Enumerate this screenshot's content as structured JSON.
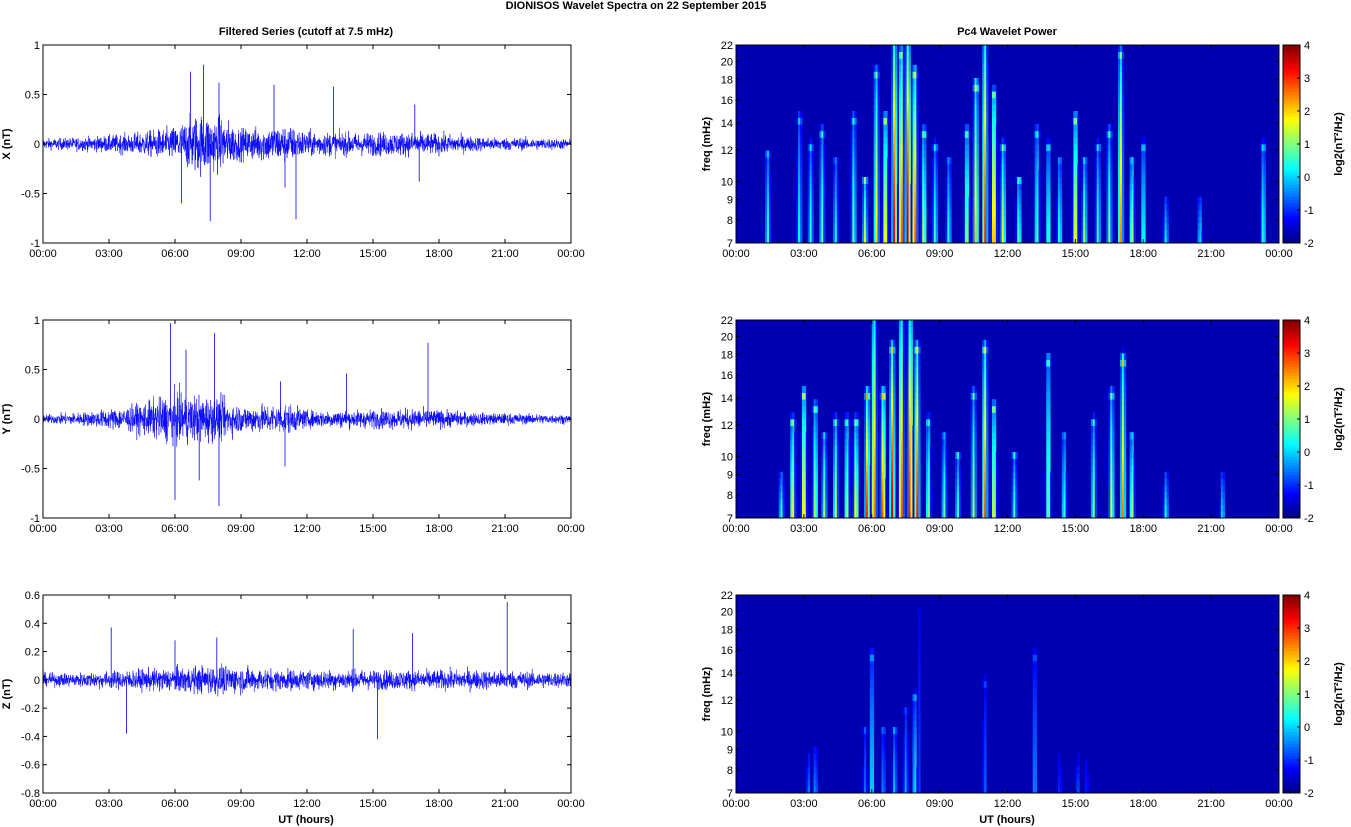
{
  "figure": {
    "suptitle": "DIONISOS Wavelet Spectra on 22 September 2015",
    "left_title": "Filtered Series (cutoff at 7.5 mHz)",
    "right_title": "Pc4 Wavelet Power",
    "xlabel": "UT (hours)"
  },
  "chart_data": [
    {
      "type": "line",
      "component": "X",
      "ylabel": "X (nT)",
      "xlim": [
        0,
        24
      ],
      "ylim": [
        -1,
        1
      ],
      "xticks": [
        "00:00",
        "03:00",
        "06:00",
        "09:00",
        "12:00",
        "15:00",
        "18:00",
        "21:00",
        "00:00"
      ],
      "yticks": [
        "-1",
        "-0.5",
        "0",
        "0.5",
        "1"
      ],
      "color": "#0000ff",
      "noise_envelope_nT": [
        [
          0,
          0.06
        ],
        [
          2,
          0.08
        ],
        [
          4,
          0.12
        ],
        [
          6,
          0.2
        ],
        [
          7,
          0.35
        ],
        [
          8,
          0.32
        ],
        [
          9,
          0.18
        ],
        [
          11,
          0.22
        ],
        [
          12,
          0.15
        ],
        [
          14,
          0.13
        ],
        [
          16,
          0.14
        ],
        [
          18,
          0.12
        ],
        [
          20,
          0.08
        ],
        [
          24,
          0.06
        ]
      ],
      "peaks": [
        [
          6.7,
          0.73
        ],
        [
          7.3,
          0.8
        ],
        [
          7.6,
          -0.78
        ],
        [
          8.0,
          0.62
        ],
        [
          10.5,
          0.6
        ],
        [
          11.5,
          -0.76
        ],
        [
          13.2,
          0.58
        ],
        [
          16.9,
          0.4
        ],
        [
          17.1,
          -0.38
        ],
        [
          11.0,
          -0.44
        ],
        [
          6.3,
          -0.6
        ]
      ]
    },
    {
      "type": "line",
      "component": "Y",
      "ylabel": "Y (nT)",
      "xlim": [
        0,
        24
      ],
      "ylim": [
        -1,
        1
      ],
      "xticks": [
        "00:00",
        "03:00",
        "06:00",
        "09:00",
        "12:00",
        "15:00",
        "18:00",
        "21:00",
        "00:00"
      ],
      "yticks": [
        "-1",
        "-0.5",
        "0",
        "0.5",
        "1"
      ],
      "color": "#0000ff",
      "noise_envelope_nT": [
        [
          0,
          0.05
        ],
        [
          2,
          0.08
        ],
        [
          4,
          0.15
        ],
        [
          6,
          0.3
        ],
        [
          7,
          0.28
        ],
        [
          8,
          0.25
        ],
        [
          9,
          0.15
        ],
        [
          11,
          0.18
        ],
        [
          12,
          0.1
        ],
        [
          14,
          0.1
        ],
        [
          17,
          0.12
        ],
        [
          20,
          0.07
        ],
        [
          24,
          0.05
        ]
      ],
      "peaks": [
        [
          5.8,
          0.97
        ],
        [
          6.0,
          -0.82
        ],
        [
          6.5,
          0.7
        ],
        [
          7.1,
          -0.62
        ],
        [
          7.8,
          0.87
        ],
        [
          8.0,
          -0.88
        ],
        [
          11.0,
          -0.48
        ],
        [
          13.8,
          0.46
        ],
        [
          17.5,
          0.77
        ],
        [
          10.8,
          0.38
        ]
      ]
    },
    {
      "type": "line",
      "component": "Z",
      "ylabel": "Z (nT)",
      "xlim": [
        0,
        24
      ],
      "ylim": [
        -0.8,
        0.6
      ],
      "xticks": [
        "00:00",
        "03:00",
        "06:00",
        "09:00",
        "12:00",
        "15:00",
        "18:00",
        "21:00",
        "00:00"
      ],
      "yticks": [
        "-0.8",
        "-0.6",
        "-0.4",
        "-0.2",
        "0",
        "0.2",
        "0.4",
        "0.6"
      ],
      "color": "#0000ff",
      "noise_envelope_nT": [
        [
          0,
          0.05
        ],
        [
          2,
          0.06
        ],
        [
          4,
          0.08
        ],
        [
          6,
          0.1
        ],
        [
          8,
          0.12
        ],
        [
          10,
          0.09
        ],
        [
          12,
          0.08
        ],
        [
          16,
          0.08
        ],
        [
          20,
          0.08
        ],
        [
          24,
          0.06
        ]
      ],
      "peaks": [
        [
          3.1,
          0.37
        ],
        [
          3.8,
          -0.38
        ],
        [
          7.9,
          0.3
        ],
        [
          15.2,
          -0.42
        ],
        [
          21.1,
          0.55
        ],
        [
          14.1,
          0.36
        ],
        [
          16.8,
          0.33
        ],
        [
          6.0,
          0.28
        ]
      ]
    },
    {
      "type": "heatmap",
      "component": "X",
      "ylabel": "freq (mHz)",
      "xlim": [
        0,
        24
      ],
      "ylim": [
        7,
        22
      ],
      "yscale": "log",
      "xticks": [
        "00:00",
        "03:00",
        "06:00",
        "09:00",
        "12:00",
        "15:00",
        "18:00",
        "21:00",
        "00:00"
      ],
      "yticks": [
        "7",
        "8",
        "9",
        "10",
        "12",
        "14",
        "16",
        "18",
        "20",
        "22"
      ],
      "colorbar": {
        "label": "log2(nT²/Hz)",
        "range": [
          -2,
          4
        ],
        "ticks": [
          "4",
          "3",
          "2",
          "1",
          "0",
          "-1",
          "-2"
        ],
        "colormap": "jet"
      },
      "streaks": [
        [
          1.4,
          11.5,
          0.5
        ],
        [
          2.8,
          14,
          0.2
        ],
        [
          3.3,
          12,
          0.5
        ],
        [
          3.8,
          13,
          0.8
        ],
        [
          4.4,
          11,
          0.3
        ],
        [
          5.2,
          14,
          0.8
        ],
        [
          5.7,
          10,
          1.5
        ],
        [
          6.2,
          18,
          2
        ],
        [
          6.6,
          14,
          2.4
        ],
        [
          7.0,
          22,
          3.5
        ],
        [
          7.3,
          20,
          3.2
        ],
        [
          7.6,
          22,
          3.8
        ],
        [
          7.9,
          18,
          3.3
        ],
        [
          8.3,
          13,
          1.5
        ],
        [
          8.8,
          12,
          0.6
        ],
        [
          9.4,
          11,
          0.5
        ],
        [
          10.2,
          13,
          1.5
        ],
        [
          10.6,
          17,
          2.2
        ],
        [
          11.0,
          22,
          3.2
        ],
        [
          11.4,
          16,
          3
        ],
        [
          11.8,
          12,
          1.8
        ],
        [
          12.5,
          10,
          1
        ],
        [
          13.3,
          13,
          0.8
        ],
        [
          13.8,
          12,
          0.8
        ],
        [
          14.3,
          11,
          0.6
        ],
        [
          15.0,
          14,
          2.3
        ],
        [
          15.4,
          11,
          1.2
        ],
        [
          16.0,
          12,
          0.6
        ],
        [
          16.5,
          13,
          1
        ],
        [
          17.0,
          20,
          2.5
        ],
        [
          17.5,
          11,
          1.5
        ],
        [
          18.0,
          12,
          0.6
        ],
        [
          19.0,
          9,
          0.2
        ],
        [
          20.5,
          9,
          0.1
        ],
        [
          23.3,
          12,
          0.6
        ]
      ]
    },
    {
      "type": "heatmap",
      "component": "Y",
      "ylabel": "freq (mHz)",
      "xlim": [
        0,
        24
      ],
      "ylim": [
        7,
        22
      ],
      "yscale": "log",
      "xticks": [
        "00:00",
        "03:00",
        "06:00",
        "09:00",
        "12:00",
        "15:00",
        "18:00",
        "21:00",
        "00:00"
      ],
      "yticks": [
        "7",
        "8",
        "9",
        "10",
        "12",
        "14",
        "16",
        "18",
        "20",
        "22"
      ],
      "colorbar": {
        "label": "log2(nT²/Hz)",
        "range": [
          -2,
          4
        ],
        "ticks": [
          "4",
          "3",
          "2",
          "1",
          "0",
          "-1",
          "-2"
        ],
        "colormap": "jet"
      },
      "streaks": [
        [
          2.0,
          9,
          0.6
        ],
        [
          2.5,
          12,
          2
        ],
        [
          3.0,
          14,
          2.5
        ],
        [
          3.5,
          13,
          1.5
        ],
        [
          3.9,
          11,
          1.2
        ],
        [
          4.4,
          12,
          1.5
        ],
        [
          4.9,
          12,
          1.5
        ],
        [
          5.3,
          12,
          2
        ],
        [
          5.8,
          14,
          3.2
        ],
        [
          6.1,
          22,
          3
        ],
        [
          6.5,
          14,
          3.3
        ],
        [
          6.9,
          18,
          3.6
        ],
        [
          7.3,
          22,
          3.2
        ],
        [
          7.7,
          22,
          3.6
        ],
        [
          8.0,
          18,
          3.3
        ],
        [
          8.5,
          12,
          1.2
        ],
        [
          9.2,
          11,
          0.8
        ],
        [
          9.8,
          10,
          0.6
        ],
        [
          10.5,
          14,
          1.2
        ],
        [
          11.0,
          18,
          3
        ],
        [
          11.4,
          13,
          2
        ],
        [
          12.3,
          10,
          0.6
        ],
        [
          13.8,
          17,
          1.2
        ],
        [
          14.5,
          11,
          0.6
        ],
        [
          15.8,
          12,
          1
        ],
        [
          16.6,
          14,
          1.5
        ],
        [
          17.1,
          17,
          2.5
        ],
        [
          17.5,
          11,
          1.5
        ],
        [
          19.0,
          9,
          0.4
        ],
        [
          21.5,
          9,
          0.1
        ]
      ]
    },
    {
      "type": "heatmap",
      "component": "Z",
      "ylabel": "freq (mHz)",
      "xlim": [
        0,
        24
      ],
      "ylim": [
        7,
        22
      ],
      "yscale": "log",
      "xticks": [
        "00:00",
        "03:00",
        "06:00",
        "09:00",
        "12:00",
        "15:00",
        "18:00",
        "21:00",
        "00:00"
      ],
      "yticks": [
        "7",
        "8",
        "9",
        "10",
        "12",
        "14",
        "16",
        "18",
        "20",
        "22"
      ],
      "colorbar": {
        "label": "log2(nT²/Hz)",
        "range": [
          -2,
          4
        ],
        "ticks": [
          "4",
          "3",
          "2",
          "1",
          "0",
          "-1",
          "-2"
        ],
        "colormap": "jet"
      },
      "streaks": [
        [
          3.2,
          8.5,
          -0.7
        ],
        [
          3.5,
          9,
          -0.5
        ],
        [
          5.7,
          10,
          -0.8
        ],
        [
          6.0,
          15,
          0.2
        ],
        [
          6.5,
          10,
          -0.6
        ],
        [
          7.0,
          10,
          -0.2
        ],
        [
          7.5,
          11,
          -0.4
        ],
        [
          7.9,
          12,
          0.1
        ],
        [
          8.1,
          22,
          -1.2
        ],
        [
          11.0,
          13,
          -0.9
        ],
        [
          13.2,
          15,
          -0.5
        ],
        [
          14.3,
          9,
          -1.2
        ],
        [
          15.1,
          8.5,
          -0.9
        ],
        [
          15.5,
          9,
          -1.3
        ]
      ]
    }
  ]
}
